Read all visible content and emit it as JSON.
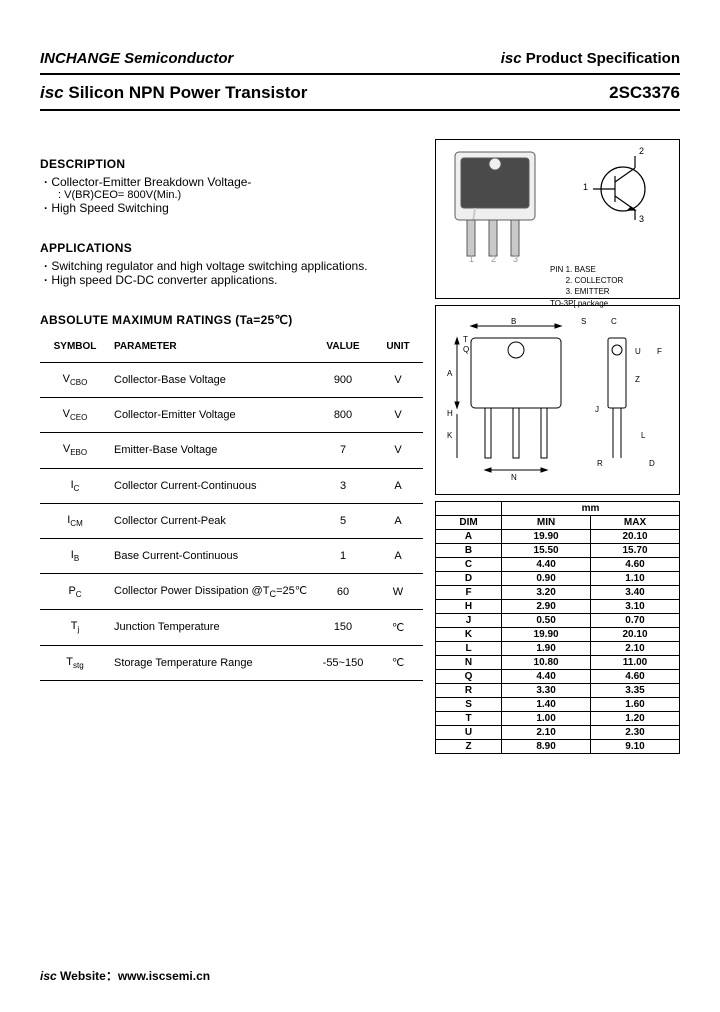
{
  "header": {
    "company": "INCHANGE Semiconductor",
    "spec_prefix": "isc",
    "spec_label": "Product Specification",
    "product_line_prefix": "isc",
    "product_line": "Silicon NPN Power Transistor",
    "part_number": "2SC3376"
  },
  "description": {
    "heading": "DESCRIPTION",
    "items": [
      "Collector-Emitter Breakdown Voltage-",
      "High Speed Switching"
    ],
    "sub_spec": ": V(BR)CEO= 800V(Min.)"
  },
  "applications": {
    "heading": "APPLICATIONS",
    "items": [
      "Switching regulator and high voltage switching applications.",
      "High speed DC-DC converter applications."
    ]
  },
  "ratings": {
    "heading": "ABSOLUTE MAXIMUM RATINGS (Ta=25℃)",
    "columns": [
      "SYMBOL",
      "PARAMETER",
      "VALUE",
      "UNIT"
    ],
    "rows": [
      {
        "sym": "V<sub>CBO</sub>",
        "param": "Collector-Base Voltage",
        "val": "900",
        "unit": "V"
      },
      {
        "sym": "V<sub>CEO</sub>",
        "param": "Collector-Emitter Voltage",
        "val": "800",
        "unit": "V"
      },
      {
        "sym": "V<sub>EBO</sub>",
        "param": "Emitter-Base Voltage",
        "val": "7",
        "unit": "V"
      },
      {
        "sym": "I<sub>C</sub>",
        "param": "Collector Current-Continuous",
        "val": "3",
        "unit": "A"
      },
      {
        "sym": "I<sub>CM</sub>",
        "param": "Collector Current-Peak",
        "val": "5",
        "unit": "A"
      },
      {
        "sym": "I<sub>B</sub>",
        "param": "Base Current-Continuous",
        "val": "1",
        "unit": "A"
      },
      {
        "sym": "P<sub>C</sub>",
        "param": "Collector Power Dissipation @T<sub>C</sub>=25℃",
        "val": "60",
        "unit": "W"
      },
      {
        "sym": "T<sub>j</sub>",
        "param": "Junction Temperature",
        "val": "150",
        "unit": "℃"
      },
      {
        "sym": "T<sub>stg</sub>",
        "param": "Storage Temperature Range",
        "val": "-55~150",
        "unit": "℃"
      }
    ]
  },
  "pins": {
    "heading": "PIN",
    "labels": [
      "1. BASE",
      "2. COLLECTOR",
      "3. EMITTER"
    ],
    "package": "TO-3P[ package"
  },
  "dimensions": {
    "unit_label": "mm",
    "head_dim": "DIM",
    "head_min": "MIN",
    "head_max": "MAX",
    "rows": [
      [
        "A",
        "19.90",
        "20.10"
      ],
      [
        "B",
        "15.50",
        "15.70"
      ],
      [
        "C",
        "4.40",
        "4.60"
      ],
      [
        "D",
        "0.90",
        "1.10"
      ],
      [
        "F",
        "3.20",
        "3.40"
      ],
      [
        "H",
        "2.90",
        "3.10"
      ],
      [
        "J",
        "0.50",
        "0.70"
      ],
      [
        "K",
        "19.90",
        "20.10"
      ],
      [
        "L",
        "1.90",
        "2.10"
      ],
      [
        "N",
        "10.80",
        "11.00"
      ],
      [
        "Q",
        "4.40",
        "4.60"
      ],
      [
        "R",
        "3.30",
        "3.35"
      ],
      [
        "S",
        "1.40",
        "1.60"
      ],
      [
        "T",
        "1.00",
        "1.20"
      ],
      [
        "U",
        "2.10",
        "2.30"
      ],
      [
        "Z",
        "8.90",
        "9.10"
      ]
    ]
  },
  "footer": {
    "prefix": "isc",
    "label": "Website：",
    "url": "www.iscsemi.cn"
  },
  "style": {
    "page_bg": "#ffffff",
    "rule_color": "#000000",
    "sym_panel_svg": {
      "stroke": "#5b5b5b",
      "pkg_fill": "#4a4a4a",
      "pin_fill": "#c9c9c9"
    },
    "outline_svg": {
      "stroke": "#000000"
    }
  }
}
